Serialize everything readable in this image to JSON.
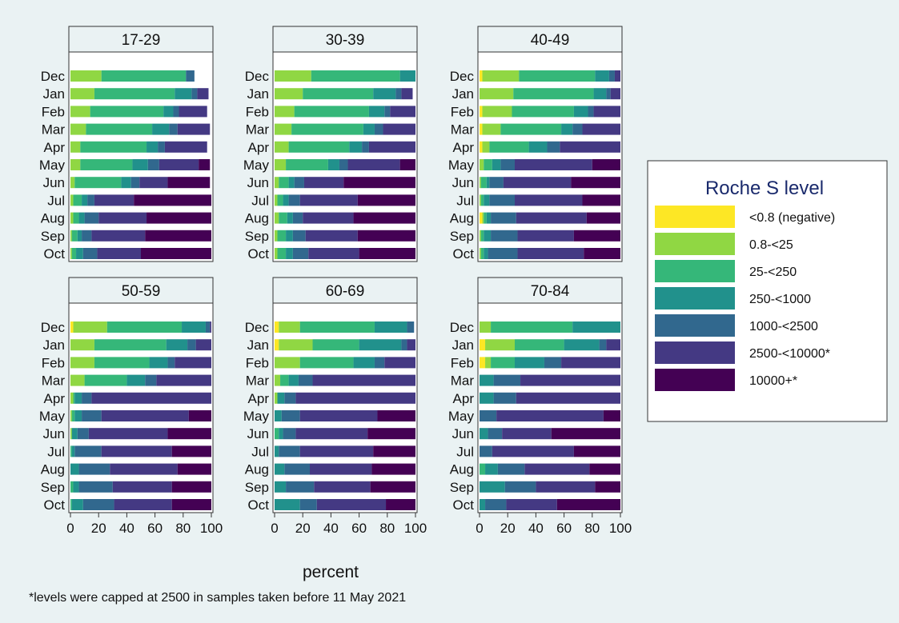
{
  "chart_data": {
    "type": "bar",
    "orientation": "horizontal",
    "stacked": true,
    "xlabel": "percent",
    "xlim": [
      0,
      100
    ],
    "xticks": [
      0,
      20,
      40,
      60,
      80,
      100
    ],
    "categories": [
      "Dec",
      "Jan",
      "Feb",
      "Mar",
      "Apr",
      "May",
      "Jun",
      "Jul",
      "Aug",
      "Sep",
      "Oct"
    ],
    "note": "*levels were capped at 2500 in samples taken before 11 May 2021",
    "legend": {
      "title": "Roche S level",
      "position": "right",
      "levels": [
        {
          "label": "<0.8 (negative)",
          "color": "#fde725"
        },
        {
          "label": "0.8-<25",
          "color": "#90d743"
        },
        {
          "label": "25-<250",
          "color": "#35b779"
        },
        {
          "label": "250-<1000",
          "color": "#21918c"
        },
        {
          "label": "1000-<2500",
          "color": "#31688e"
        },
        {
          "label": "2500-<10000*",
          "color": "#443983"
        },
        {
          "label": "10000+*",
          "color": "#440154"
        }
      ]
    },
    "panels": [
      {
        "title": "17-29",
        "values": [
          [
            0,
            22,
            60,
            0,
            6,
            0,
            0
          ],
          [
            0,
            17,
            57,
            12,
            4,
            8,
            0
          ],
          [
            0,
            14,
            52,
            7,
            4,
            20,
            0
          ],
          [
            0,
            11,
            47,
            12,
            6,
            23,
            0
          ],
          [
            0,
            7,
            47,
            8,
            5,
            30,
            0
          ],
          [
            0,
            7,
            37,
            11,
            8,
            28,
            8
          ],
          [
            0,
            3,
            33,
            7,
            6,
            20,
            30
          ],
          [
            0,
            2,
            6,
            4,
            5,
            28,
            55
          ],
          [
            0,
            2,
            4,
            4,
            10,
            34,
            46
          ],
          [
            0,
            1,
            4,
            3,
            7,
            38,
            47
          ],
          [
            0,
            1,
            3,
            5,
            10,
            31,
            50
          ]
        ]
      },
      {
        "title": "30-39",
        "values": [
          [
            0,
            26,
            63,
            11,
            0,
            0,
            0
          ],
          [
            0,
            20,
            50,
            16,
            4,
            8,
            0
          ],
          [
            0,
            14,
            53,
            11,
            4,
            18,
            0
          ],
          [
            0,
            12,
            51,
            8,
            6,
            23,
            0
          ],
          [
            0,
            10,
            43,
            9,
            5,
            33,
            0
          ],
          [
            0,
            8,
            30,
            8,
            6,
            37,
            11
          ],
          [
            0,
            3,
            7,
            4,
            7,
            28,
            51
          ],
          [
            0,
            2,
            4,
            4,
            8,
            41,
            41
          ],
          [
            0,
            3,
            6,
            4,
            7,
            36,
            44
          ],
          [
            0,
            2,
            6,
            5,
            9,
            37,
            41
          ],
          [
            0,
            2,
            6,
            5,
            11,
            36,
            40
          ]
        ]
      },
      {
        "title": "40-49",
        "values": [
          [
            2,
            26,
            54,
            10,
            4,
            4,
            0
          ],
          [
            0,
            24,
            57,
            9,
            3,
            7,
            0
          ],
          [
            2,
            21,
            44,
            10,
            4,
            19,
            0
          ],
          [
            2,
            13,
            43,
            8,
            7,
            27,
            0
          ],
          [
            2,
            5,
            28,
            13,
            9,
            43,
            0
          ],
          [
            0,
            3,
            6,
            6,
            10,
            55,
            20
          ],
          [
            0,
            1,
            4,
            2,
            10,
            48,
            35
          ],
          [
            0,
            1,
            2,
            4,
            18,
            48,
            27
          ],
          [
            2,
            1,
            2,
            3,
            18,
            50,
            24
          ],
          [
            0,
            1,
            2,
            5,
            19,
            40,
            33
          ],
          [
            0,
            1,
            2,
            3,
            21,
            47,
            26
          ]
        ]
      },
      {
        "title": "50-59",
        "values": [
          [
            2,
            24,
            53,
            17,
            3,
            1,
            0
          ],
          [
            0,
            17,
            51,
            15,
            6,
            11,
            0
          ],
          [
            0,
            17,
            39,
            13,
            5,
            26,
            0
          ],
          [
            0,
            10,
            30,
            13,
            8,
            39,
            0
          ],
          [
            0,
            2,
            1,
            5,
            7,
            85,
            0
          ],
          [
            0,
            1,
            2,
            5,
            14,
            62,
            16
          ],
          [
            0,
            1,
            0,
            4,
            8,
            56,
            31
          ],
          [
            0,
            0,
            1,
            2,
            19,
            50,
            28
          ],
          [
            0,
            0,
            0,
            6,
            22,
            48,
            24
          ],
          [
            0,
            0,
            2,
            4,
            24,
            42,
            28
          ],
          [
            0,
            0,
            1,
            8,
            22,
            41,
            28
          ]
        ]
      },
      {
        "title": "60-69",
        "values": [
          [
            3,
            15,
            53,
            23,
            5,
            0,
            0
          ],
          [
            3,
            24,
            33,
            30,
            4,
            6,
            0
          ],
          [
            0,
            18,
            38,
            15,
            7,
            22,
            0
          ],
          [
            0,
            4,
            6,
            7,
            10,
            73,
            0
          ],
          [
            0,
            2,
            0,
            5,
            8,
            85,
            0
          ],
          [
            0,
            0,
            0,
            5,
            13,
            55,
            27
          ],
          [
            0,
            0,
            3,
            3,
            9,
            51,
            34
          ],
          [
            0,
            0,
            0,
            3,
            15,
            52,
            30
          ],
          [
            0,
            0,
            0,
            7,
            18,
            44,
            31
          ],
          [
            0,
            0,
            0,
            8,
            20,
            40,
            32
          ],
          [
            0,
            0,
            0,
            18,
            12,
            49,
            21
          ]
        ]
      },
      {
        "title": "70-84",
        "values": [
          [
            0,
            8,
            58,
            34,
            0,
            0,
            0
          ],
          [
            4,
            21,
            35,
            25,
            5,
            10,
            0
          ],
          [
            4,
            4,
            17,
            21,
            12,
            42,
            0
          ],
          [
            0,
            0,
            0,
            10,
            19,
            71,
            0
          ],
          [
            0,
            0,
            0,
            10,
            16,
            74,
            0
          ],
          [
            0,
            0,
            0,
            0,
            12,
            76,
            12
          ],
          [
            0,
            0,
            0,
            6,
            10,
            35,
            49
          ],
          [
            0,
            0,
            0,
            0,
            9,
            58,
            33
          ],
          [
            0,
            0,
            4,
            9,
            19,
            46,
            22
          ],
          [
            0,
            0,
            0,
            18,
            22,
            42,
            18
          ],
          [
            0,
            0,
            0,
            4,
            15,
            36,
            45
          ]
        ]
      }
    ]
  }
}
